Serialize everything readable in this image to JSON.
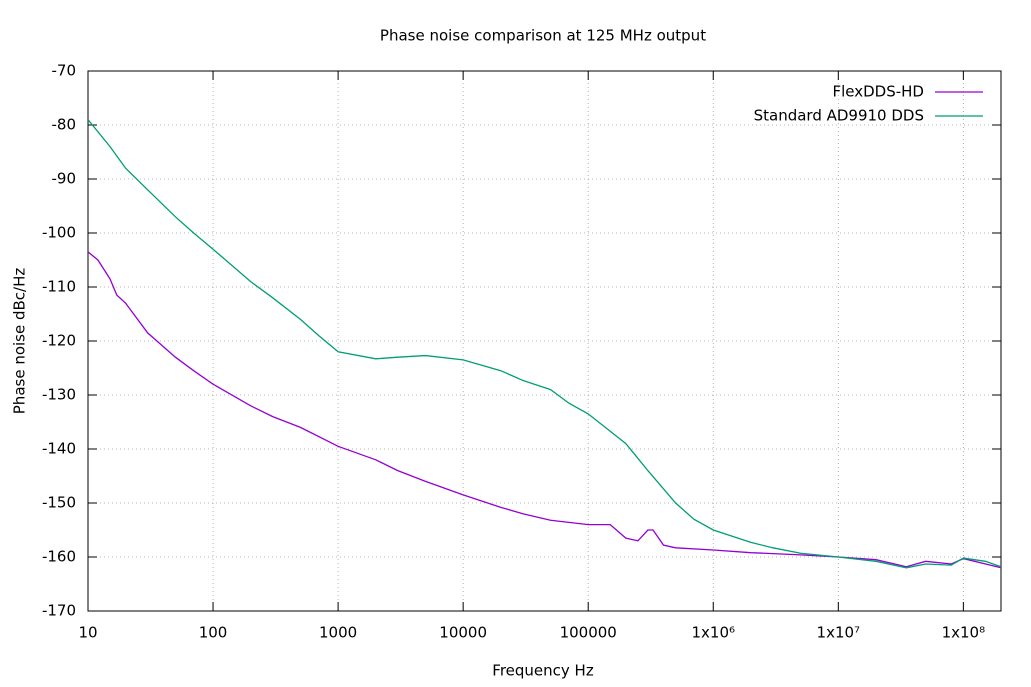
{
  "chart_data": {
    "type": "line",
    "title": "Phase noise comparison at 125 MHz output",
    "x_label": "Frequency Hz",
    "y_label": "Phase noise dBc/Hz",
    "x_log": true,
    "grid": true,
    "legend": "top-right",
    "xlim": [
      10,
      200000000
    ],
    "ylim": [
      -170,
      -70
    ],
    "xticks": [
      10,
      100,
      1000,
      10000,
      100000,
      {
        "value": 1000000,
        "label": "1x10⁶"
      },
      {
        "value": 10000000,
        "label": "1x10⁷"
      },
      {
        "value": 100000000,
        "label": "1x10⁸"
      }
    ],
    "yticks": [
      -170,
      -160,
      -150,
      -140,
      -130,
      -120,
      -110,
      -100,
      -90,
      -80,
      -70
    ],
    "series": [
      {
        "name": "FlexDDS-HD",
        "color": "#9400d3",
        "x": [
          10,
          12,
          15,
          17,
          20,
          30,
          50,
          70,
          100,
          200,
          300,
          500,
          1000,
          2000,
          3000,
          5000,
          10000,
          20000,
          30000,
          50000,
          100000,
          150000,
          200000,
          250000,
          300000,
          330000,
          400000,
          500000,
          1000000,
          2000000,
          5000000,
          10000000,
          20000000,
          35000000,
          50000000,
          80000000,
          100000000,
          200000000
        ],
        "values": [
          -103.5,
          -105,
          -108.5,
          -111.5,
          -113,
          -118.5,
          -123,
          -125.5,
          -128,
          -132,
          -134,
          -136,
          -139.5,
          -142,
          -144,
          -146,
          -148.5,
          -150.8,
          -152,
          -153.2,
          -154,
          -154,
          -156.5,
          -157,
          -155,
          -155,
          -157.8,
          -158.3,
          -158.7,
          -159.2,
          -159.6,
          -160,
          -160.5,
          -161.8,
          -160.8,
          -161.3,
          -160.3,
          -162
        ]
      },
      {
        "name": "Standard AD9910 DDS",
        "color": "#009e73",
        "x": [
          10,
          15,
          20,
          30,
          50,
          70,
          100,
          200,
          300,
          500,
          700,
          1000,
          2000,
          3000,
          5000,
          10000,
          20000,
          30000,
          50000,
          70000,
          100000,
          200000,
          300000,
          500000,
          700000,
          1000000,
          2000000,
          3000000,
          5000000,
          10000000,
          20000000,
          35000000,
          50000000,
          80000000,
          100000000,
          150000000,
          200000000
        ],
        "values": [
          -79,
          -84,
          -88,
          -92,
          -97,
          -100,
          -103,
          -109,
          -112,
          -116,
          -119,
          -122,
          -123.3,
          -123,
          -122.7,
          -123.5,
          -125.5,
          -127.3,
          -129,
          -131.5,
          -133.5,
          -139,
          -144,
          -150,
          -153,
          -155,
          -157.3,
          -158.3,
          -159.3,
          -160,
          -160.8,
          -162,
          -161.3,
          -161.5,
          -160.2,
          -160.8,
          -161.8
        ]
      }
    ]
  }
}
